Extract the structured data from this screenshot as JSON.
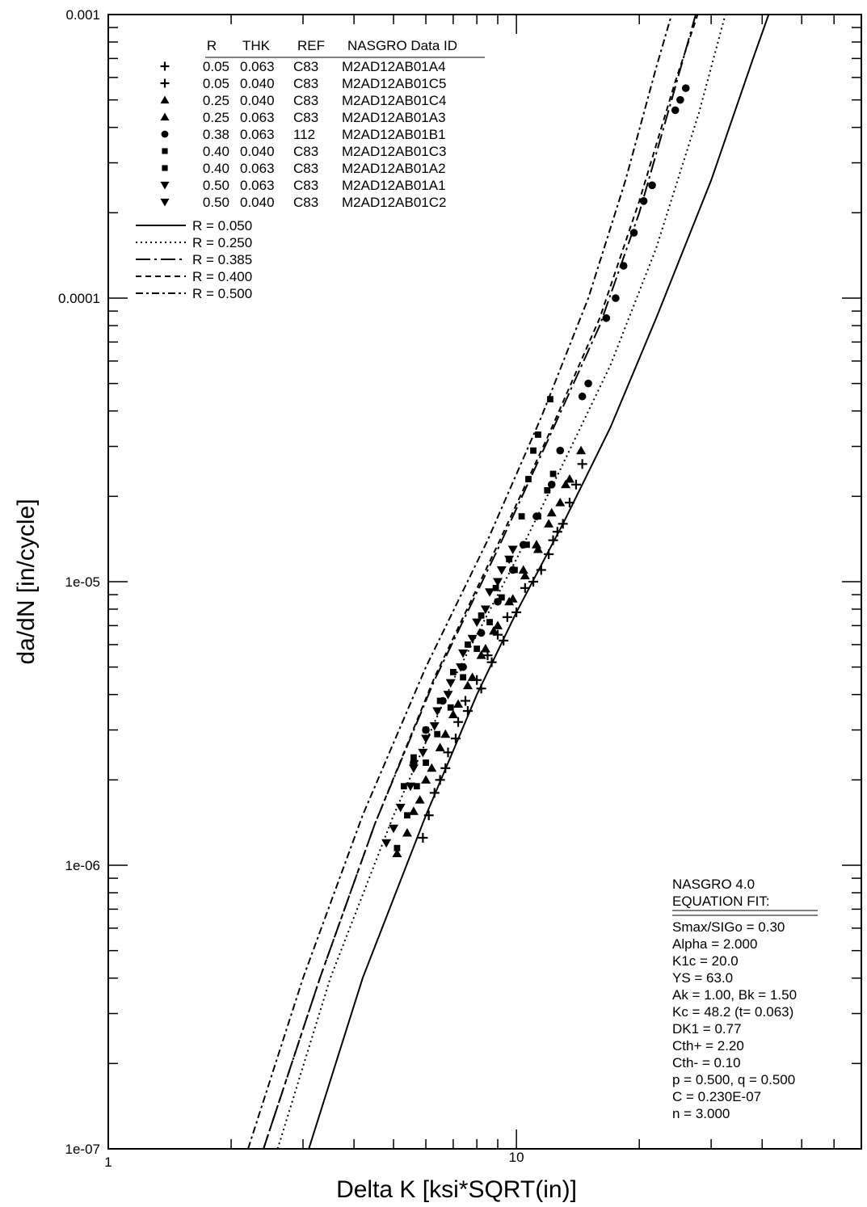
{
  "chart_data": {
    "type": "scatter",
    "title": "",
    "xlabel": "Delta K [ksi*SQRT(in)]",
    "ylabel": "da/dN [in/cycle]",
    "xscale": "log",
    "yscale": "log",
    "xlim": [
      1,
      70
    ],
    "ylim": [
      1e-07,
      0.001
    ],
    "x_tick_labels": [
      "1",
      "10"
    ],
    "y_tick_labels": [
      "1e-07",
      "1e-06",
      "1e-05",
      "0.0001",
      "0.001"
    ],
    "grid": false,
    "legend_position": "top-left",
    "legend_table": {
      "headers": [
        "R",
        "THK",
        "REF",
        "NASGRO Data ID"
      ],
      "rows": [
        {
          "marker": "plus",
          "R": "0.05",
          "THK": "0.063",
          "REF": "C83",
          "ID": "M2AD12AB01A4"
        },
        {
          "marker": "plus",
          "R": "0.05",
          "THK": "0.040",
          "REF": "C83",
          "ID": "M2AD12AB01C5"
        },
        {
          "marker": "triangle-up",
          "R": "0.25",
          "THK": "0.040",
          "REF": "C83",
          "ID": "M2AD12AB01C4"
        },
        {
          "marker": "triangle-up",
          "R": "0.25",
          "THK": "0.063",
          "REF": "C83",
          "ID": "M2AD12AB01A3"
        },
        {
          "marker": "circle",
          "R": "0.38",
          "THK": "0.063",
          "REF": "112",
          "ID": "M2AD12AB01B1"
        },
        {
          "marker": "square",
          "R": "0.40",
          "THK": "0.040",
          "REF": "C83",
          "ID": "M2AD12AB01C3"
        },
        {
          "marker": "square",
          "R": "0.40",
          "THK": "0.063",
          "REF": "C83",
          "ID": "M2AD12AB01A2"
        },
        {
          "marker": "triangle-down",
          "R": "0.50",
          "THK": "0.063",
          "REF": "C83",
          "ID": "M2AD12AB01A1"
        },
        {
          "marker": "triangle-down",
          "R": "0.50",
          "THK": "0.040",
          "REF": "C83",
          "ID": "M2AD12AB01C2"
        }
      ]
    },
    "curve_legend": [
      {
        "label": "R = 0.050",
        "dash": "solid"
      },
      {
        "label": "R = 0.250",
        "dash": "dot"
      },
      {
        "label": "R = 0.385",
        "dash": "longdash-dot"
      },
      {
        "label": "R = 0.400",
        "dash": "dash"
      },
      {
        "label": "R = 0.500",
        "dash": "dash-dot"
      }
    ],
    "fit_curves": [
      {
        "R": 0.05,
        "points": [
          [
            3.1,
            1e-07
          ],
          [
            4.2,
            4e-07
          ],
          [
            6,
            1.5e-06
          ],
          [
            8,
            4e-06
          ],
          [
            10,
            7.8e-06
          ],
          [
            13,
            1.6e-05
          ],
          [
            17,
            3.5e-05
          ],
          [
            22,
            8.5e-05
          ],
          [
            30,
            0.00026
          ],
          [
            38,
            0.0007
          ],
          [
            41.5,
            0.001
          ]
        ]
      },
      {
        "R": 0.25,
        "points": [
          [
            2.6,
            1e-07
          ],
          [
            3.5,
            4e-07
          ],
          [
            5,
            1.5e-06
          ],
          [
            7,
            4.5e-06
          ],
          [
            10,
            1.2e-05
          ],
          [
            13,
            2.6e-05
          ],
          [
            17,
            5.8e-05
          ],
          [
            22,
            0.00015
          ],
          [
            28,
            0.00045
          ],
          [
            32.5,
            0.001
          ]
        ]
      },
      {
        "R": 0.385,
        "points": [
          [
            2.4,
            1e-07
          ],
          [
            3.3,
            4e-07
          ],
          [
            4.5,
            1.4e-06
          ],
          [
            6.3,
            4.5e-06
          ],
          [
            9,
            1.3e-05
          ],
          [
            12,
            3.2e-05
          ],
          [
            16,
            8e-05
          ],
          [
            20,
            0.0002
          ],
          [
            24,
            0.0005
          ],
          [
            27.5,
            0.001
          ]
        ]
      },
      {
        "R": 0.4,
        "points": [
          [
            2.4,
            1e-07
          ],
          [
            3.3,
            4e-07
          ],
          [
            4.5,
            1.4e-06
          ],
          [
            6.3,
            4.6e-06
          ],
          [
            9,
            1.35e-05
          ],
          [
            12,
            3.3e-05
          ],
          [
            16,
            8.5e-05
          ],
          [
            20,
            0.00022
          ],
          [
            24.5,
            0.00058
          ],
          [
            27.8,
            0.001
          ]
        ]
      },
      {
        "R": 0.5,
        "points": [
          [
            2.2,
            1e-07
          ],
          [
            3,
            4e-07
          ],
          [
            4.2,
            1.5e-06
          ],
          [
            6,
            5e-06
          ],
          [
            8.5,
            1.4e-05
          ],
          [
            11.5,
            3.8e-05
          ],
          [
            15,
            0.0001
          ],
          [
            18.5,
            0.00026
          ],
          [
            22,
            0.00065
          ],
          [
            24,
            0.001
          ]
        ]
      }
    ],
    "series": [
      {
        "marker": "plus",
        "points": [
          [
            5.9,
            1.25e-06
          ],
          [
            6.1,
            1.5e-06
          ],
          [
            6.5,
            2e-06
          ],
          [
            6.8,
            2.5e-06
          ],
          [
            7.2,
            3.2e-06
          ],
          [
            7.5,
            3.8e-06
          ],
          [
            8,
            4.5e-06
          ],
          [
            8.5,
            5.5e-06
          ],
          [
            9,
            6.5e-06
          ],
          [
            9.5,
            7.5e-06
          ],
          [
            10.5,
            9.5e-06
          ],
          [
            11.5,
            1.1e-05
          ],
          [
            12,
            1.25e-05
          ],
          [
            12.6,
            1.5e-05
          ],
          [
            13.5,
            1.9e-05
          ],
          [
            14,
            2.2e-05
          ],
          [
            14.5,
            2.6e-05
          ]
        ]
      },
      {
        "marker": "plus",
        "points": [
          [
            6.3,
            1.8e-06
          ],
          [
            6.7,
            2.2e-06
          ],
          [
            7.1,
            2.8e-06
          ],
          [
            7.6,
            3.5e-06
          ],
          [
            8.2,
            4.2e-06
          ],
          [
            8.7,
            5.2e-06
          ],
          [
            9.3,
            6.2e-06
          ],
          [
            10,
            7.8e-06
          ],
          [
            11,
            1e-05
          ],
          [
            12.3,
            1.4e-05
          ],
          [
            13,
            1.6e-05
          ]
        ]
      },
      {
        "marker": "triangle-up",
        "points": [
          [
            5.4,
            1.3e-06
          ],
          [
            5.8,
            1.7e-06
          ],
          [
            6.2,
            2.2e-06
          ],
          [
            6.7,
            2.9e-06
          ],
          [
            7.2,
            3.7e-06
          ],
          [
            7.8,
            4.6e-06
          ],
          [
            8.4,
            5.8e-06
          ],
          [
            9,
            7e-06
          ],
          [
            9.8,
            8.7e-06
          ],
          [
            10.5,
            1.05e-05
          ],
          [
            11.3,
            1.3e-05
          ],
          [
            12,
            1.6e-05
          ],
          [
            12.8,
            1.9e-05
          ],
          [
            13.5,
            2.3e-05
          ],
          [
            14.4,
            2.9e-05
          ]
        ]
      },
      {
        "marker": "triangle-up",
        "points": [
          [
            5.1,
            1.1e-06
          ],
          [
            5.6,
            1.55e-06
          ],
          [
            6,
            2e-06
          ],
          [
            6.5,
            2.6e-06
          ],
          [
            7,
            3.4e-06
          ],
          [
            7.6,
            4.3e-06
          ],
          [
            8.2,
            5.5e-06
          ],
          [
            8.8,
            6.7e-06
          ],
          [
            9.6,
            8.5e-06
          ],
          [
            10.4,
            1.1e-05
          ],
          [
            11.2,
            1.35e-05
          ],
          [
            12.2,
            1.75e-05
          ],
          [
            13.2,
            2.2e-05
          ]
        ]
      },
      {
        "marker": "circle",
        "points": [
          [
            5.6,
            2.3e-06
          ],
          [
            6,
            3e-06
          ],
          [
            6.6,
            3.8e-06
          ],
          [
            7.4,
            5e-06
          ],
          [
            8.2,
            6.6e-06
          ],
          [
            9,
            8.5e-06
          ],
          [
            9.8,
            1.1e-05
          ],
          [
            10.4,
            1.35e-05
          ],
          [
            11.2,
            1.7e-05
          ],
          [
            12.2,
            2.2e-05
          ],
          [
            12.8,
            2.9e-05
          ],
          [
            14.5,
            4.5e-05
          ],
          [
            15,
            5e-05
          ],
          [
            16.6,
            8.5e-05
          ],
          [
            17.5,
            0.0001
          ],
          [
            18.3,
            0.00013
          ],
          [
            19.4,
            0.00017
          ],
          [
            20.5,
            0.00022
          ],
          [
            21.5,
            0.00025
          ],
          [
            24.5,
            0.00046
          ],
          [
            25.2,
            0.0005
          ],
          [
            26,
            0.00055
          ]
        ]
      },
      {
        "marker": "square",
        "points": [
          [
            5.1,
            1.15e-06
          ],
          [
            5.4,
            1.5e-06
          ],
          [
            5.7,
            1.9e-06
          ],
          [
            6,
            2.3e-06
          ],
          [
            6.4,
            2.9e-06
          ],
          [
            6.9,
            3.6e-06
          ],
          [
            7.4,
            4.6e-06
          ],
          [
            8,
            5.8e-06
          ],
          [
            8.6,
            7.2e-06
          ],
          [
            9.2,
            8.8e-06
          ],
          [
            9.9,
            1.1e-05
          ],
          [
            10.6,
            1.35e-05
          ],
          [
            11.3,
            1.7e-05
          ],
          [
            11.9,
            2.1e-05
          ],
          [
            12.3,
            2.4e-05
          ]
        ]
      },
      {
        "marker": "square",
        "points": [
          [
            5.3,
            1.9e-06
          ],
          [
            5.6,
            2.4e-06
          ],
          [
            6,
            3e-06
          ],
          [
            6.5,
            3.8e-06
          ],
          [
            7,
            4.8e-06
          ],
          [
            7.6,
            6e-06
          ],
          [
            8.2,
            7.6e-06
          ],
          [
            8.9,
            9.5e-06
          ],
          [
            9.6,
            1.2e-05
          ],
          [
            10.3,
            1.7e-05
          ],
          [
            10.7,
            2.3e-05
          ],
          [
            11,
            2.9e-05
          ],
          [
            11.3,
            3.3e-05
          ],
          [
            12.1,
            4.4e-05
          ]
        ]
      },
      {
        "marker": "triangle-down",
        "points": [
          [
            4.8,
            1.2e-06
          ],
          [
            5.2,
            1.6e-06
          ],
          [
            5.6,
            2.2e-06
          ],
          [
            6,
            2.8e-06
          ],
          [
            6.4,
            3.5e-06
          ],
          [
            6.9,
            4.4e-06
          ],
          [
            7.4,
            5.6e-06
          ],
          [
            8,
            7.2e-06
          ],
          [
            8.6,
            9.2e-06
          ],
          [
            9.2,
            1.1e-05
          ],
          [
            9.8,
            1.3e-05
          ]
        ]
      },
      {
        "marker": "triangle-down",
        "points": [
          [
            5,
            1.35e-06
          ],
          [
            5.5,
            1.9e-06
          ],
          [
            5.9,
            2.5e-06
          ],
          [
            6.3,
            3.1e-06
          ],
          [
            6.8,
            4e-06
          ],
          [
            7.3,
            5e-06
          ],
          [
            7.8,
            6.3e-06
          ],
          [
            8.4,
            8e-06
          ],
          [
            9,
            1e-05
          ],
          [
            9.6,
            1.2e-05
          ]
        ]
      }
    ]
  },
  "fit_box": {
    "heading": [
      "NASGRO 4.0",
      "EQUATION FIT:"
    ],
    "params": [
      "Smax/SIGo = 0.30",
      "Alpha =  2.000",
      "K1c =  20.0",
      "YS  =  63.0",
      "Ak = 1.00,  Bk = 1.50",
      "Kc =  48.2 (t= 0.063)",
      "DK1 = 0.77",
      "Cth+ = 2.20",
      "Cth- = 0.10",
      "p = 0.500, q = 0.500",
      "C = 0.230E-07",
      "n = 3.000"
    ]
  }
}
